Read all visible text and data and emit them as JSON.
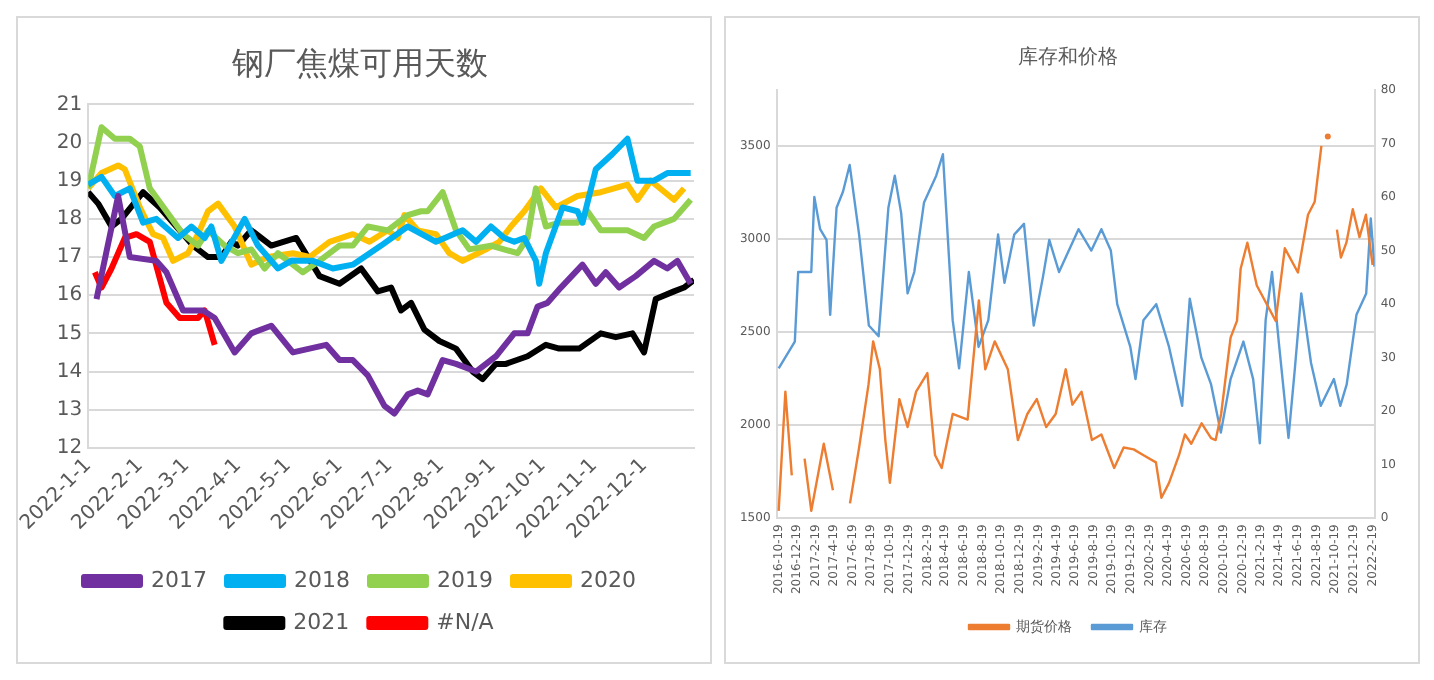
{
  "chart_data": [
    {
      "type": "line",
      "title": "钢厂焦煤可用天数",
      "xlim": [
        "2022-01-01",
        "2022-12-31"
      ],
      "xticks": [
        {
          "value": "2022-01-01",
          "label": "2022-1-1"
        },
        {
          "value": "2022-02-01",
          "label": "2022-2-1"
        },
        {
          "value": "2022-03-01",
          "label": "2022-3-1"
        },
        {
          "value": "2022-04-01",
          "label": "2022-4-1"
        },
        {
          "value": "2022-05-01",
          "label": "2022-5-1"
        },
        {
          "value": "2022-06-01",
          "label": "2022-6-1"
        },
        {
          "value": "2022-07-01",
          "label": "2022-7-1"
        },
        {
          "value": "2022-08-01",
          "label": "2022-8-1"
        },
        {
          "value": "2022-09-01",
          "label": "2022-9-1"
        },
        {
          "value": "2022-10-01",
          "label": "2022-10-1"
        },
        {
          "value": "2022-11-01",
          "label": "2022-11-1"
        },
        {
          "value": "2022-12-01",
          "label": "2022-12-1"
        }
      ],
      "ylim": [
        12,
        21
      ],
      "yticks": [
        12,
        13,
        14,
        15,
        16,
        17,
        18,
        19,
        20,
        21
      ],
      "grid": "y",
      "legend": "bottom",
      "series": [
        {
          "name": "2017",
          "color": "#7030a0",
          "x": [
            "2022-01-06",
            "2022-01-19",
            "2022-01-26",
            "2022-02-11",
            "2022-02-17",
            "2022-02-27",
            "2022-03-11",
            "2022-03-18",
            "2022-03-30",
            "2022-04-09",
            "2022-04-21",
            "2022-05-04",
            "2022-05-24",
            "2022-06-01",
            "2022-06-09",
            "2022-06-18",
            "2022-06-28",
            "2022-07-04",
            "2022-07-12",
            "2022-07-18",
            "2022-07-24",
            "2022-08-02",
            "2022-08-10",
            "2022-08-22",
            "2022-09-03",
            "2022-09-14",
            "2022-09-22",
            "2022-09-28",
            "2022-10-04",
            "2022-10-12",
            "2022-10-25",
            "2022-11-02",
            "2022-11-08",
            "2022-11-16",
            "2022-11-26",
            "2022-12-07",
            "2022-12-15",
            "2022-12-21",
            "2022-12-29"
          ],
          "values": [
            15.9,
            18.6,
            17.0,
            16.9,
            16.6,
            15.6,
            15.6,
            15.4,
            14.5,
            15.0,
            15.2,
            14.5,
            14.7,
            14.3,
            14.3,
            13.9,
            13.1,
            12.9,
            13.4,
            13.5,
            13.4,
            14.3,
            14.2,
            14.0,
            14.4,
            15.0,
            15.0,
            15.7,
            15.8,
            16.2,
            16.8,
            16.3,
            16.6,
            16.2,
            16.5,
            16.9,
            16.7,
            16.9,
            16.3
          ]
        },
        {
          "name": "2018",
          "color": "#00b0f0",
          "x": [
            "2022-01-01",
            "2022-01-09",
            "2022-01-17",
            "2022-01-26",
            "2022-02-03",
            "2022-02-11",
            "2022-02-24",
            "2022-03-04",
            "2022-03-12",
            "2022-03-16",
            "2022-03-22",
            "2022-04-05",
            "2022-04-13",
            "2022-04-25",
            "2022-05-03",
            "2022-05-16",
            "2022-05-28",
            "2022-06-09",
            "2022-06-26",
            "2022-07-12",
            "2022-07-29",
            "2022-08-14",
            "2022-08-22",
            "2022-08-31",
            "2022-09-08",
            "2022-09-14",
            "2022-09-20",
            "2022-09-27",
            "2022-09-29",
            "2022-10-03",
            "2022-10-13",
            "2022-10-22",
            "2022-10-25",
            "2022-11-02",
            "2022-11-12",
            "2022-11-21",
            "2022-11-27",
            "2022-12-07",
            "2022-12-15",
            "2022-12-29"
          ],
          "values": [
            18.9,
            19.1,
            18.6,
            18.8,
            17.9,
            18.0,
            17.5,
            17.8,
            17.5,
            17.8,
            16.9,
            18.0,
            17.3,
            16.7,
            16.9,
            16.9,
            16.7,
            16.8,
            17.3,
            17.8,
            17.4,
            17.7,
            17.4,
            17.8,
            17.5,
            17.4,
            17.5,
            16.9,
            16.3,
            17.1,
            18.3,
            18.2,
            17.9,
            19.3,
            19.7,
            20.1,
            19.0,
            19.0,
            19.2,
            19.2
          ]
        },
        {
          "name": "2019",
          "color": "#92d050",
          "x": [
            "2022-01-01",
            "2022-01-09",
            "2022-01-17",
            "2022-01-26",
            "2022-02-01",
            "2022-02-07",
            "2022-02-17",
            "2022-02-27",
            "2022-03-08",
            "2022-03-14",
            "2022-03-24",
            "2022-04-01",
            "2022-04-09",
            "2022-04-17",
            "2022-04-25",
            "2022-05-10",
            "2022-05-20",
            "2022-06-01",
            "2022-06-09",
            "2022-06-18",
            "2022-06-30",
            "2022-07-12",
            "2022-07-20",
            "2022-07-24",
            "2022-08-02",
            "2022-08-10",
            "2022-08-18",
            "2022-08-31",
            "2022-09-16",
            "2022-09-22",
            "2022-09-27",
            "2022-10-03",
            "2022-10-11",
            "2022-10-22",
            "2022-10-28",
            "2022-11-05",
            "2022-11-21",
            "2022-12-01",
            "2022-12-07",
            "2022-12-19",
            "2022-12-29"
          ],
          "values": [
            18.8,
            20.4,
            20.1,
            20.1,
            19.9,
            18.8,
            18.2,
            17.6,
            17.3,
            17.7,
            17.3,
            17.1,
            17.2,
            16.7,
            17.1,
            16.6,
            16.9,
            17.3,
            17.3,
            17.8,
            17.7,
            18.1,
            18.2,
            18.2,
            18.7,
            17.7,
            17.2,
            17.3,
            17.1,
            17.5,
            18.8,
            17.8,
            17.9,
            17.9,
            18.2,
            17.7,
            17.7,
            17.5,
            17.8,
            18.0,
            18.5
          ]
        },
        {
          "name": "2020",
          "color": "#ffc000",
          "x": [
            "2022-01-01",
            "2022-01-09",
            "2022-01-19",
            "2022-01-23",
            "2022-02-01",
            "2022-02-09",
            "2022-02-15",
            "2022-02-21",
            "2022-03-02",
            "2022-03-08",
            "2022-03-14",
            "2022-03-20",
            "2022-03-30",
            "2022-04-09",
            "2022-04-19",
            "2022-05-04",
            "2022-05-14",
            "2022-05-26",
            "2022-06-09",
            "2022-06-19",
            "2022-06-30",
            "2022-07-06",
            "2022-07-10",
            "2022-07-18",
            "2022-07-29",
            "2022-08-06",
            "2022-08-14",
            "2022-08-28",
            "2022-09-05",
            "2022-09-12",
            "2022-09-20",
            "2022-09-30",
            "2022-10-09",
            "2022-10-22",
            "2022-11-05",
            "2022-11-21",
            "2022-11-27",
            "2022-12-05",
            "2022-12-19",
            "2022-12-25"
          ],
          "values": [
            18.8,
            19.2,
            19.4,
            19.3,
            18.3,
            17.6,
            17.5,
            16.9,
            17.1,
            17.6,
            18.2,
            18.4,
            17.8,
            16.8,
            17.0,
            17.1,
            17.0,
            17.4,
            17.6,
            17.4,
            17.7,
            17.5,
            18.1,
            17.7,
            17.6,
            17.1,
            16.9,
            17.2,
            17.4,
            17.8,
            18.2,
            18.8,
            18.3,
            18.6,
            18.7,
            18.9,
            18.5,
            19.0,
            18.5,
            18.8
          ]
        },
        {
          "name": "2021",
          "color": "#000000",
          "x": [
            "2022-01-01",
            "2022-01-07",
            "2022-01-15",
            "2022-01-21",
            "2022-02-03",
            "2022-02-13",
            "2022-02-21",
            "2022-03-05",
            "2022-03-14",
            "2022-03-22",
            "2022-03-28",
            "2022-04-01",
            "2022-04-09",
            "2022-04-21",
            "2022-05-06",
            "2022-05-20",
            "2022-06-01",
            "2022-06-14",
            "2022-06-24",
            "2022-07-02",
            "2022-07-08",
            "2022-07-14",
            "2022-07-22",
            "2022-07-31",
            "2022-08-10",
            "2022-08-20",
            "2022-08-26",
            "2022-09-03",
            "2022-09-09",
            "2022-09-22",
            "2022-10-03",
            "2022-10-11",
            "2022-10-23",
            "2022-11-05",
            "2022-11-14",
            "2022-11-24",
            "2022-12-01",
            "2022-12-08",
            "2022-12-19",
            "2022-12-25",
            "2022-12-31"
          ],
          "values": [
            18.7,
            18.4,
            17.8,
            18.0,
            18.7,
            18.3,
            17.9,
            17.3,
            17.0,
            17.0,
            17.4,
            17.3,
            17.7,
            17.3,
            17.5,
            16.5,
            16.3,
            16.7,
            16.1,
            16.2,
            15.6,
            15.8,
            15.1,
            14.8,
            14.6,
            14.0,
            13.8,
            14.2,
            14.2,
            14.4,
            14.7,
            14.6,
            14.6,
            15.0,
            14.9,
            15.0,
            14.5,
            15.9,
            16.1,
            16.2,
            16.4
          ]
        },
        {
          "name": "#N/A",
          "color": "#ff0000",
          "x": [
            "2022-01-05",
            "2022-01-09",
            "2022-01-15",
            "2022-01-23",
            "2022-01-30",
            "2022-02-07",
            "2022-02-17",
            "2022-02-25",
            "2022-03-08",
            "2022-03-12",
            "2022-03-18"
          ],
          "values": [
            16.6,
            16.2,
            16.7,
            17.5,
            17.6,
            17.4,
            15.8,
            15.4,
            15.4,
            15.6,
            14.7
          ]
        }
      ]
    },
    {
      "type": "line",
      "title": "库存和价格",
      "xlim": [
        "2016-10-12",
        "2022-02-26"
      ],
      "xticks": [
        {
          "value": "2016-10-19",
          "label": "2016-10-19"
        },
        {
          "value": "2016-12-19",
          "label": "2016-12-19"
        },
        {
          "value": "2017-02-19",
          "label": "2017-2-19"
        },
        {
          "value": "2017-04-19",
          "label": "2017-4-19"
        },
        {
          "value": "2017-06-19",
          "label": "2017-6-19"
        },
        {
          "value": "2017-08-19",
          "label": "2017-8-19"
        },
        {
          "value": "2017-10-19",
          "label": "2017-10-19"
        },
        {
          "value": "2017-12-19",
          "label": "2017-12-19"
        },
        {
          "value": "2018-02-19",
          "label": "2018-2-19"
        },
        {
          "value": "2018-04-19",
          "label": "2018-4-19"
        },
        {
          "value": "2018-06-19",
          "label": "2018-6-19"
        },
        {
          "value": "2018-08-19",
          "label": "2018-8-19"
        },
        {
          "value": "2018-10-19",
          "label": "2018-10-19"
        },
        {
          "value": "2018-12-19",
          "label": "2018-12-19"
        },
        {
          "value": "2019-02-19",
          "label": "2019-2-19"
        },
        {
          "value": "2019-04-19",
          "label": "2019-4-19"
        },
        {
          "value": "2019-06-19",
          "label": "2019-6-19"
        },
        {
          "value": "2019-08-19",
          "label": "2019-8-19"
        },
        {
          "value": "2019-10-19",
          "label": "2019-10-19"
        },
        {
          "value": "2019-12-19",
          "label": "2019-12-19"
        },
        {
          "value": "2020-02-19",
          "label": "2020-2-19"
        },
        {
          "value": "2020-04-19",
          "label": "2020-4-19"
        },
        {
          "value": "2020-06-19",
          "label": "2020-6-19"
        },
        {
          "value": "2020-08-19",
          "label": "2020-8-19"
        },
        {
          "value": "2020-10-19",
          "label": "2020-10-19"
        },
        {
          "value": "2020-12-19",
          "label": "2020-12-19"
        },
        {
          "value": "2021-02-19",
          "label": "2021-2-19"
        },
        {
          "value": "2021-04-19",
          "label": "2021-4-19"
        },
        {
          "value": "2021-06-19",
          "label": "2021-6-19"
        },
        {
          "value": "2021-08-19",
          "label": "2021-8-19"
        },
        {
          "value": "2021-10-19",
          "label": "2021-10-19"
        },
        {
          "value": "2021-12-19",
          "label": "2021-12-19"
        },
        {
          "value": "2022-02-19",
          "label": "2022-2-19"
        }
      ],
      "ylim": [
        1500,
        3800
      ],
      "yticks": [
        1500,
        2000,
        2500,
        3000,
        3500
      ],
      "y2lim": [
        0,
        80
      ],
      "y2ticks": [
        0,
        10,
        20,
        30,
        40,
        50,
        60,
        70,
        80
      ],
      "grid": "y",
      "legend": "bottom",
      "series": [
        {
          "name": "期货价格",
          "color": "#ed7d31",
          "x": [
            "2016-10-19",
            "2016-11-10",
            "2016-12-01",
            "2016-12-28",
            "2017-01-12",
            "2017-02-03",
            "2017-03-16",
            "2017-04-15",
            "2017-05-19",
            "2017-06-10",
            "2017-07-10",
            "2017-08-10",
            "2017-08-25",
            "2017-09-16",
            "2017-10-04",
            "2017-10-19",
            "2017-11-19",
            "2017-12-16",
            "2018-01-13",
            "2018-02-19",
            "2018-03-16",
            "2018-04-07",
            "2018-05-13",
            "2018-07-01",
            "2018-08-07",
            "2018-08-28",
            "2018-09-28",
            "2018-11-10",
            "2018-12-13",
            "2019-01-13",
            "2019-02-13",
            "2019-03-16",
            "2019-04-16",
            "2019-05-19",
            "2019-06-10",
            "2019-07-10",
            "2019-08-13",
            "2019-09-13",
            "2019-10-25",
            "2019-11-25",
            "2019-12-28",
            "2020-01-28",
            "2020-03-10",
            "2020-03-28",
            "2020-04-22",
            "2020-05-25",
            "2020-06-13",
            "2020-07-04",
            "2020-08-07",
            "2020-09-07",
            "2020-09-22",
            "2020-10-10",
            "2020-11-10",
            "2020-12-01",
            "2020-12-13",
            "2021-01-04",
            "2021-02-04",
            "2021-04-07",
            "2021-05-07",
            "2021-06-19",
            "2021-07-22",
            "2021-08-13",
            "2021-09-04",
            "2021-09-13",
            "2021-09-25",
            "2021-10-16",
            "2021-10-25",
            "2021-11-07",
            "2021-11-25",
            "2021-12-16",
            "2022-01-07",
            "2022-01-28",
            "2022-02-19"
          ],
          "values": [
            1540,
            2180,
            1730,
            null,
            1820,
            1540,
            1900,
            1650,
            null,
            1580,
            1880,
            2220,
            2450,
            2300,
            1920,
            1690,
            2140,
            1990,
            2180,
            2280,
            1840,
            1770,
            2060,
            2030,
            2670,
            2300,
            2450,
            2300,
            1920,
            2060,
            2140,
            1990,
            2060,
            2300,
            2110,
            2180,
            1920,
            1950,
            1770,
            1880,
            1870,
            1840,
            1800,
            1610,
            1690,
            1840,
            1950,
            1900,
            2010,
            1930,
            1920,
            2060,
            2470,
            2560,
            2840,
            2980,
            2750,
            2560,
            2950,
            2820,
            3130,
            3200,
            3500,
            null,
            3550,
            null,
            3050,
            2900,
            2980,
            3160,
            3010,
            3130,
            2860
          ]
        },
        {
          "name": "库存",
          "color": "#5b9bd5",
          "axis": "y2",
          "x": [
            "2016-10-19",
            "2016-12-11",
            "2016-12-22",
            "2017-02-03",
            "2017-02-13",
            "2017-03-04",
            "2017-03-25",
            "2017-04-06",
            "2017-04-27",
            "2017-05-18",
            "2017-06-09",
            "2017-07-10",
            "2017-08-11",
            "2017-09-12",
            "2017-10-14",
            "2017-11-04",
            "2017-11-25",
            "2017-12-16",
            "2018-01-07",
            "2018-02-08",
            "2018-03-20",
            "2018-04-11",
            "2018-05-13",
            "2018-06-03",
            "2018-07-05",
            "2018-08-06",
            "2018-09-07",
            "2018-10-09",
            "2018-10-30",
            "2018-12-01",
            "2019-01-02",
            "2019-02-03",
            "2019-03-05",
            "2019-03-26",
            "2019-04-27",
            "2019-06-30",
            "2019-08-11",
            "2019-09-13",
            "2019-10-14",
            "2019-11-04",
            "2019-12-17",
            "2020-01-03",
            "2020-01-29",
            "2020-03-11",
            "2020-04-22",
            "2020-06-04",
            "2020-06-29",
            "2020-08-06",
            "2020-09-07",
            "2020-10-09",
            "2020-11-10",
            "2020-12-22",
            "2021-01-23",
            "2021-02-14",
            "2021-03-05",
            "2021-03-26",
            "2021-04-17",
            "2021-05-19",
            "2021-06-09",
            "2021-06-30",
            "2021-08-01",
            "2021-09-02",
            "2021-10-15",
            "2021-11-05",
            "2021-11-26",
            "2021-12-28",
            "2022-01-29",
            "2022-02-13",
            "2022-02-25"
          ],
          "values": [
            28,
            33,
            46,
            46,
            60,
            54,
            52,
            38,
            58,
            61,
            66,
            53,
            36,
            34,
            58,
            64,
            57,
            42,
            46,
            59,
            64,
            68,
            37,
            28,
            46,
            32,
            37,
            53,
            44,
            53,
            55,
            36,
            45,
            52,
            46,
            54,
            50,
            54,
            50,
            40,
            32,
            26,
            37,
            40,
            32,
            21,
            41,
            30,
            25,
            16,
            26,
            33,
            26,
            14,
            37,
            46,
            33,
            15,
            28,
            42,
            29,
            21,
            26,
            21,
            25,
            38,
            42,
            56,
            47
          ]
        }
      ]
    }
  ]
}
